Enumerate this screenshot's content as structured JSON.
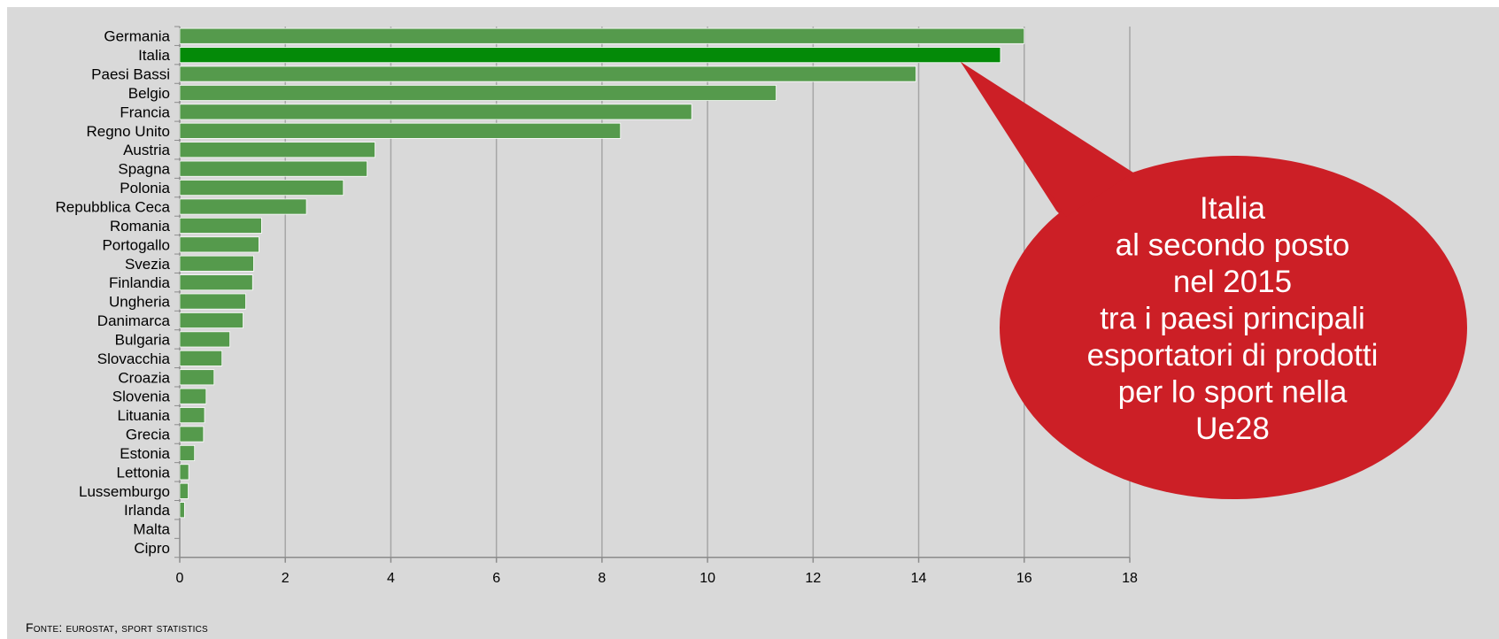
{
  "chart_data": {
    "type": "bar",
    "orientation": "horizontal",
    "categories": [
      "Germania",
      "Italia",
      "Paesi Bassi",
      "Belgio",
      "Francia",
      "Regno Unito",
      "Austria",
      "Spagna",
      "Polonia",
      "Repubblica Ceca",
      "Romania",
      "Portogallo",
      "Svezia",
      "Finlandia",
      "Ungheria",
      "Danimarca",
      "Bulgaria",
      "Slovacchia",
      "Croazia",
      "Slovenia",
      "Lituania",
      "Grecia",
      "Estonia",
      "Lettonia",
      "Lussemburgo",
      "Irlanda",
      "Malta",
      "Cipro"
    ],
    "values": [
      16.0,
      15.55,
      13.95,
      11.3,
      9.7,
      8.35,
      3.7,
      3.55,
      3.1,
      2.4,
      1.55,
      1.5,
      1.4,
      1.38,
      1.25,
      1.2,
      0.95,
      0.8,
      0.65,
      0.5,
      0.47,
      0.45,
      0.28,
      0.17,
      0.16,
      0.09,
      0.0,
      0.0
    ],
    "highlight": "Italia",
    "xlim": [
      0,
      18
    ],
    "xticks": [
      0,
      2,
      4,
      6,
      8,
      10,
      12,
      14,
      16,
      18
    ],
    "grid": "vertical",
    "bar_color": "#559a4c",
    "highlight_color": "#048a08"
  },
  "callout": {
    "lines": [
      "Italia",
      "al secondo posto",
      "nel 2015",
      "tra i paesi principali",
      "esportatori di prodotti",
      "per lo sport nella",
      "Ue28"
    ],
    "color": "#cc1f26"
  },
  "source": "Fonte: eurostat, sport statistics"
}
